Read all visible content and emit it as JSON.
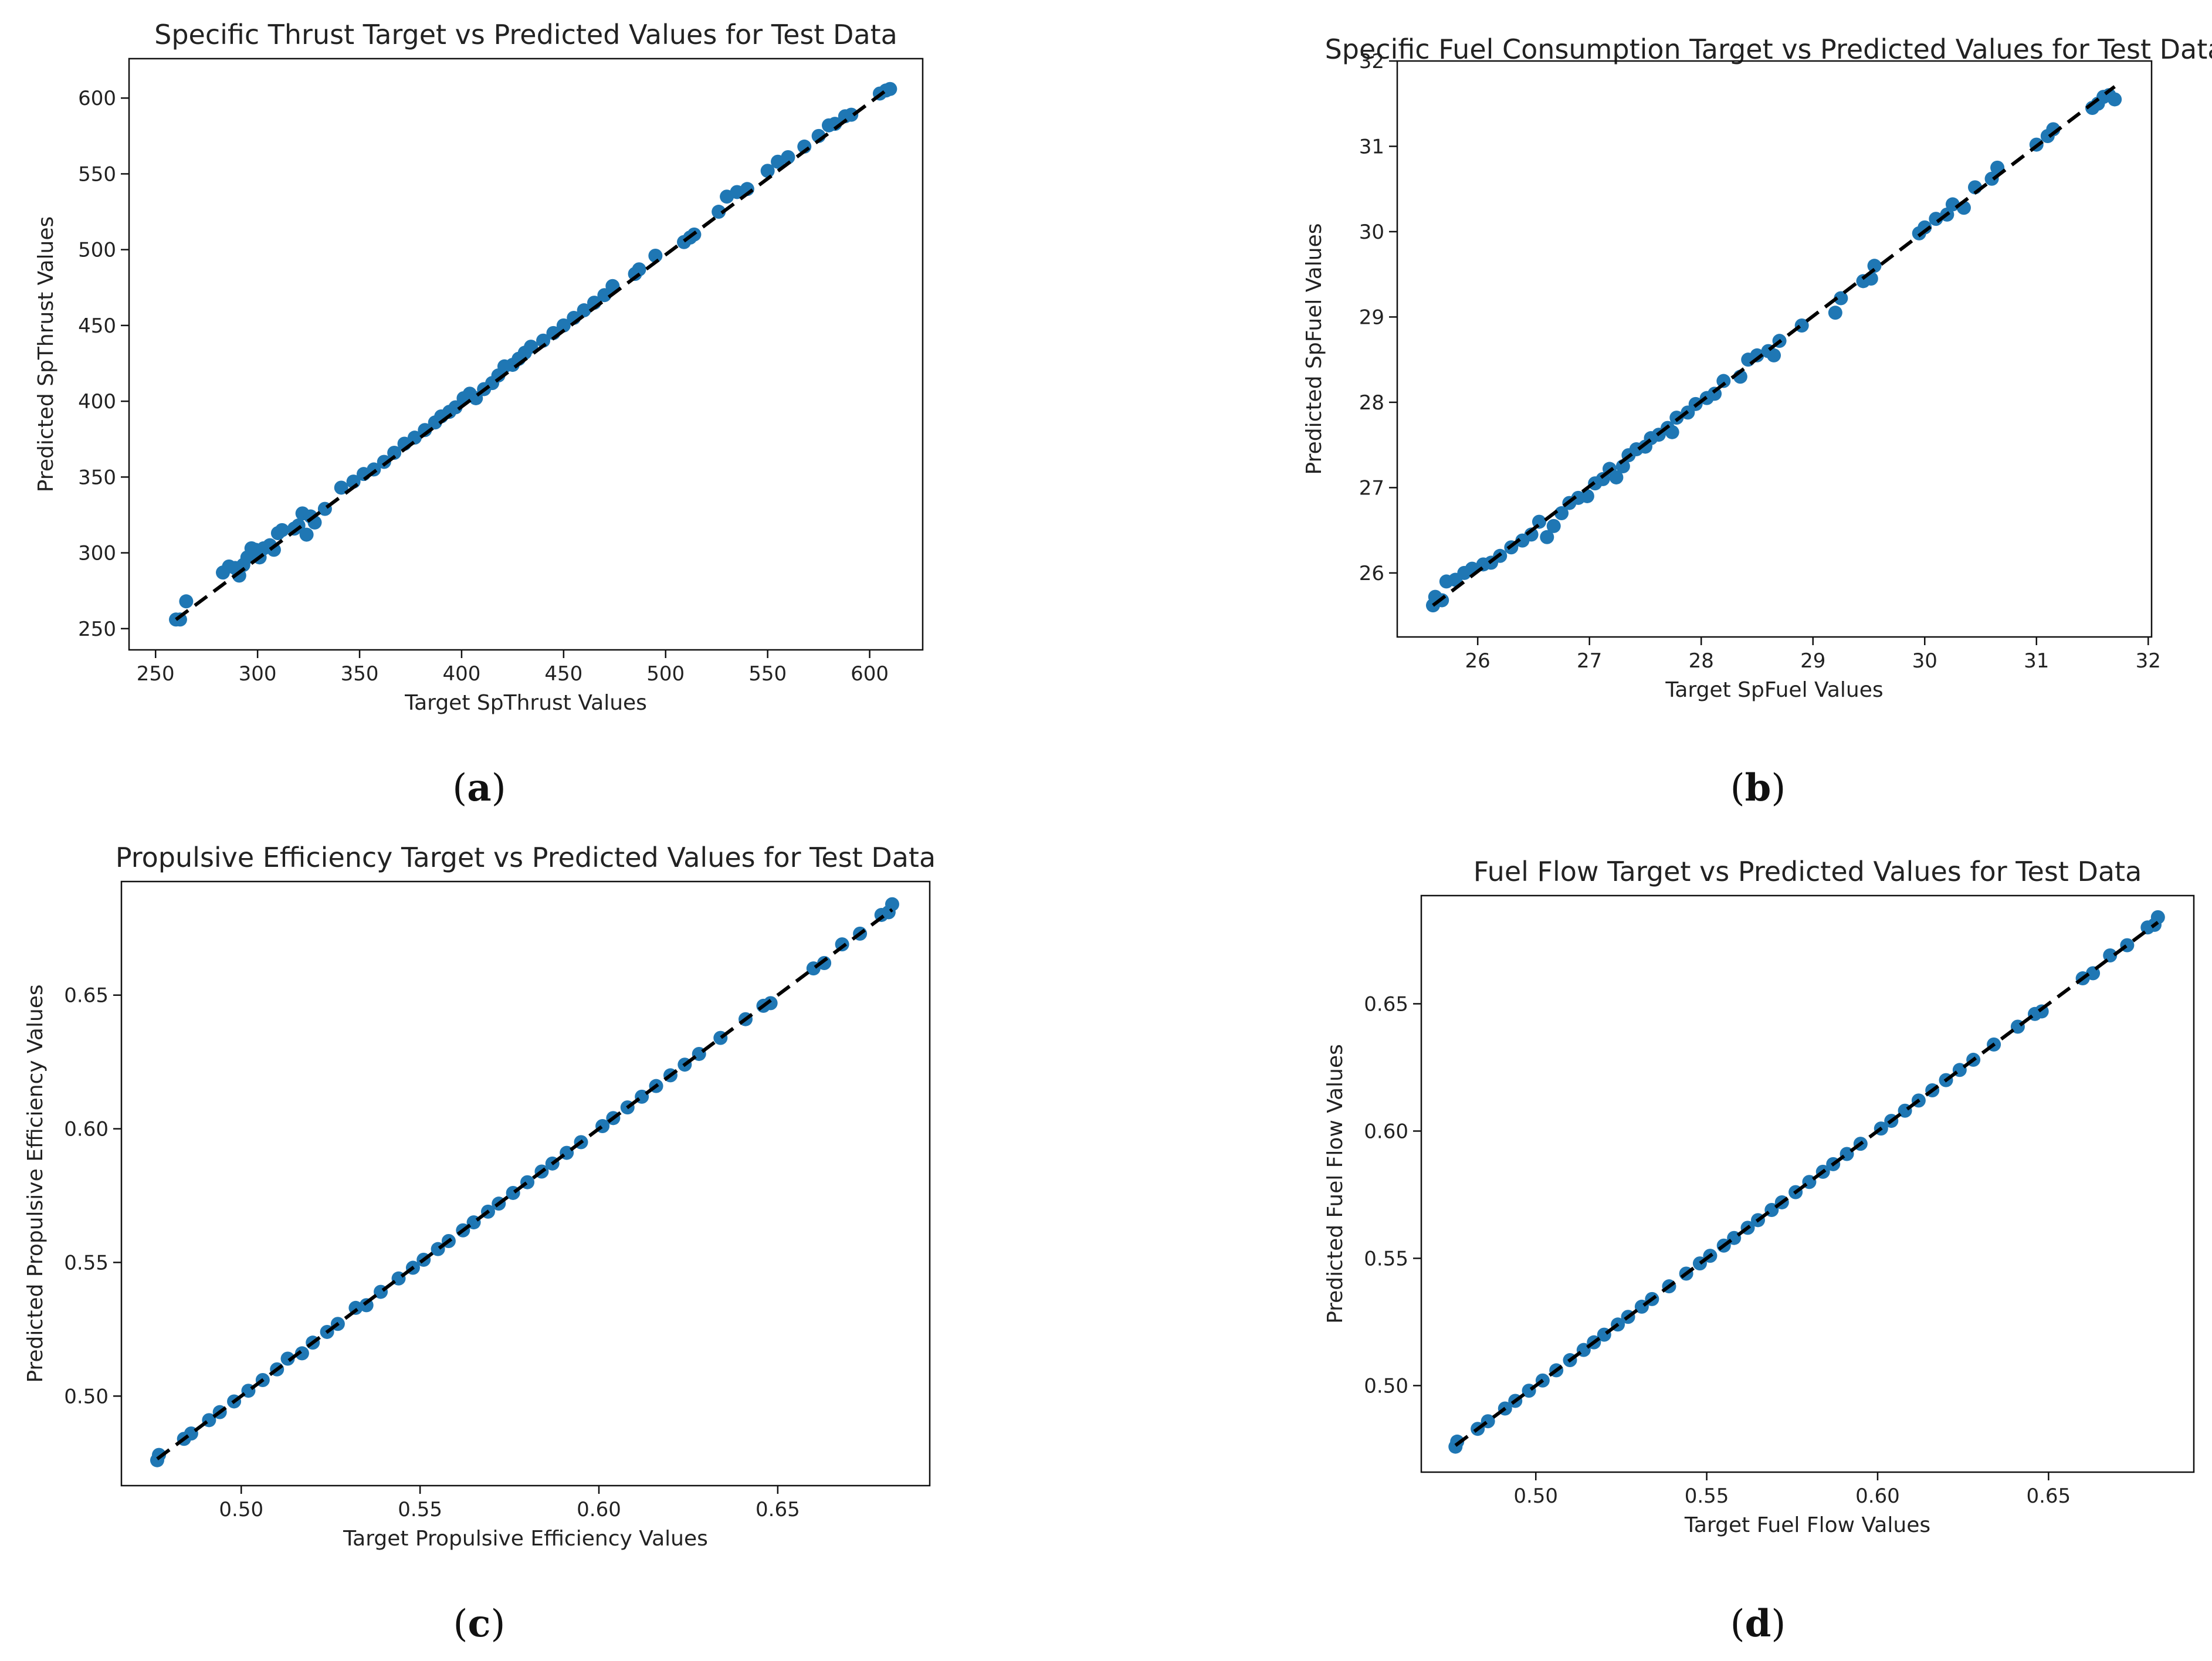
{
  "chart_data": [
    {
      "id": "a",
      "type": "scatter",
      "caption": "(a)",
      "caption_letter": "a",
      "title": "Specific Thrust Target vs Predicted Values for Test Data",
      "xlabel": "Target SpThrust Values",
      "ylabel": "Predicted SpThrust Values",
      "xlim": [
        237,
        626
      ],
      "ylim": [
        236,
        626
      ],
      "xticks": [
        250,
        300,
        350,
        400,
        450,
        500,
        550,
        600
      ],
      "yticks": [
        250,
        300,
        350,
        400,
        450,
        500,
        550,
        600
      ],
      "tick_decimals": 0,
      "reference_line": [
        [
          260,
          256
        ],
        [
          610,
          607
        ]
      ],
      "points": [
        [
          260,
          256
        ],
        [
          262,
          256
        ],
        [
          265,
          268
        ],
        [
          283,
          287
        ],
        [
          286,
          291
        ],
        [
          289,
          290
        ],
        [
          291,
          285
        ],
        [
          293,
          292
        ],
        [
          295,
          297
        ],
        [
          297,
          303
        ],
        [
          299,
          302
        ],
        [
          301,
          297
        ],
        [
          303,
          303
        ],
        [
          306,
          305
        ],
        [
          308,
          302
        ],
        [
          310,
          313
        ],
        [
          312,
          315
        ],
        [
          318,
          316
        ],
        [
          320,
          318
        ],
        [
          322,
          326
        ],
        [
          324,
          312
        ],
        [
          326,
          324
        ],
        [
          328,
          320
        ],
        [
          333,
          329
        ],
        [
          341,
          343
        ],
        [
          347,
          347
        ],
        [
          352,
          352
        ],
        [
          357,
          355
        ],
        [
          362,
          360
        ],
        [
          367,
          366
        ],
        [
          372,
          372
        ],
        [
          377,
          376
        ],
        [
          382,
          381
        ],
        [
          387,
          386
        ],
        [
          390,
          390
        ],
        [
          394,
          393
        ],
        [
          397,
          396
        ],
        [
          401,
          402
        ],
        [
          404,
          405
        ],
        [
          407,
          402
        ],
        [
          411,
          408
        ],
        [
          415,
          412
        ],
        [
          418,
          417
        ],
        [
          421,
          423
        ],
        [
          425,
          424
        ],
        [
          428,
          428
        ],
        [
          431,
          432
        ],
        [
          434,
          436
        ],
        [
          440,
          440
        ],
        [
          445,
          445
        ],
        [
          450,
          450
        ],
        [
          455,
          455
        ],
        [
          460,
          460
        ],
        [
          465,
          465
        ],
        [
          470,
          470
        ],
        [
          474,
          476
        ],
        [
          485,
          484
        ],
        [
          487,
          487
        ],
        [
          495,
          496
        ],
        [
          509,
          505
        ],
        [
          512,
          508
        ],
        [
          514,
          510
        ],
        [
          526,
          525
        ],
        [
          530,
          535
        ],
        [
          535,
          538
        ],
        [
          540,
          540
        ],
        [
          550,
          552
        ],
        [
          555,
          558
        ],
        [
          560,
          561
        ],
        [
          568,
          568
        ],
        [
          575,
          575
        ],
        [
          580,
          582
        ],
        [
          583,
          583
        ],
        [
          588,
          588
        ],
        [
          591,
          589
        ],
        [
          605,
          603
        ],
        [
          608,
          605
        ],
        [
          610,
          606
        ]
      ]
    },
    {
      "id": "b",
      "type": "scatter",
      "caption": "(b)",
      "caption_letter": "b",
      "title": "Specific Fuel Consumption Target vs Predicted Values for Test Data",
      "xlabel": "Target SpFuel Values",
      "ylabel": "Predicted SpFuel Values",
      "xlim": [
        25.28,
        32.03
      ],
      "ylim": [
        25.25,
        32.0
      ],
      "xticks": [
        26,
        27,
        28,
        29,
        30,
        31,
        32
      ],
      "yticks": [
        26,
        27,
        28,
        29,
        30,
        31,
        32
      ],
      "tick_decimals": 0,
      "reference_line": [
        [
          25.6,
          25.62
        ],
        [
          31.7,
          31.7
        ]
      ],
      "points": [
        [
          25.6,
          25.62
        ],
        [
          25.62,
          25.72
        ],
        [
          25.68,
          25.68
        ],
        [
          25.72,
          25.9
        ],
        [
          25.8,
          25.92
        ],
        [
          25.88,
          26.0
        ],
        [
          25.95,
          26.05
        ],
        [
          26.05,
          26.1
        ],
        [
          26.12,
          26.12
        ],
        [
          26.2,
          26.2
        ],
        [
          26.3,
          26.3
        ],
        [
          26.4,
          26.38
        ],
        [
          26.48,
          26.45
        ],
        [
          26.55,
          26.6
        ],
        [
          26.62,
          26.42
        ],
        [
          26.68,
          26.55
        ],
        [
          26.75,
          26.7
        ],
        [
          26.82,
          26.82
        ],
        [
          26.9,
          26.88
        ],
        [
          26.98,
          26.9
        ],
        [
          27.05,
          27.05
        ],
        [
          27.12,
          27.1
        ],
        [
          27.18,
          27.22
        ],
        [
          27.24,
          27.12
        ],
        [
          27.3,
          27.25
        ],
        [
          27.35,
          27.38
        ],
        [
          27.42,
          27.45
        ],
        [
          27.5,
          27.48
        ],
        [
          27.55,
          27.58
        ],
        [
          27.62,
          27.62
        ],
        [
          27.7,
          27.7
        ],
        [
          27.74,
          27.65
        ],
        [
          27.78,
          27.82
        ],
        [
          27.88,
          27.88
        ],
        [
          27.95,
          27.98
        ],
        [
          28.05,
          28.05
        ],
        [
          28.12,
          28.1
        ],
        [
          28.2,
          28.25
        ],
        [
          28.35,
          28.3
        ],
        [
          28.42,
          28.5
        ],
        [
          28.5,
          28.55
        ],
        [
          28.6,
          28.6
        ],
        [
          28.65,
          28.55
        ],
        [
          28.7,
          28.72
        ],
        [
          28.9,
          28.9
        ],
        [
          29.2,
          29.05
        ],
        [
          29.25,
          29.22
        ],
        [
          29.45,
          29.42
        ],
        [
          29.52,
          29.45
        ],
        [
          29.55,
          29.6
        ],
        [
          29.95,
          29.98
        ],
        [
          30.0,
          30.05
        ],
        [
          30.1,
          30.15
        ],
        [
          30.2,
          30.2
        ],
        [
          30.25,
          30.32
        ],
        [
          30.35,
          30.28
        ],
        [
          30.45,
          30.52
        ],
        [
          30.6,
          30.62
        ],
        [
          30.65,
          30.75
        ],
        [
          31.0,
          31.02
        ],
        [
          31.1,
          31.12
        ],
        [
          31.15,
          31.2
        ],
        [
          31.5,
          31.45
        ],
        [
          31.55,
          31.5
        ],
        [
          31.6,
          31.58
        ],
        [
          31.65,
          31.6
        ],
        [
          31.7,
          31.55
        ]
      ]
    },
    {
      "id": "c",
      "type": "scatter",
      "caption": "(c)",
      "caption_letter": "c",
      "title": "Propulsive Efficiency Target vs Predicted Values for Test Data",
      "xlabel": "Target Propulsive Efficiency Values",
      "ylabel": "Predicted Propulsive Efficiency Values",
      "xlim": [
        0.4665,
        0.6925
      ],
      "ylim": [
        0.4665,
        0.6925
      ],
      "xticks": [
        0.5,
        0.55,
        0.6,
        0.65
      ],
      "yticks": [
        0.5,
        0.55,
        0.6,
        0.65
      ],
      "tick_decimals": 2,
      "reference_line": [
        [
          0.4765,
          0.4765
        ],
        [
          0.682,
          0.682
        ]
      ],
      "points": [
        [
          0.4765,
          0.476
        ],
        [
          0.477,
          0.478
        ],
        [
          0.484,
          0.484
        ],
        [
          0.486,
          0.486
        ],
        [
          0.491,
          0.491
        ],
        [
          0.494,
          0.494
        ],
        [
          0.498,
          0.498
        ],
        [
          0.502,
          0.502
        ],
        [
          0.506,
          0.506
        ],
        [
          0.51,
          0.51
        ],
        [
          0.513,
          0.514
        ],
        [
          0.517,
          0.516
        ],
        [
          0.52,
          0.52
        ],
        [
          0.524,
          0.524
        ],
        [
          0.527,
          0.527
        ],
        [
          0.532,
          0.533
        ],
        [
          0.535,
          0.534
        ],
        [
          0.539,
          0.539
        ],
        [
          0.544,
          0.544
        ],
        [
          0.548,
          0.548
        ],
        [
          0.551,
          0.551
        ],
        [
          0.555,
          0.555
        ],
        [
          0.558,
          0.558
        ],
        [
          0.562,
          0.562
        ],
        [
          0.565,
          0.565
        ],
        [
          0.569,
          0.569
        ],
        [
          0.572,
          0.572
        ],
        [
          0.576,
          0.576
        ],
        [
          0.58,
          0.58
        ],
        [
          0.584,
          0.584
        ],
        [
          0.587,
          0.587
        ],
        [
          0.591,
          0.591
        ],
        [
          0.595,
          0.595
        ],
        [
          0.601,
          0.601
        ],
        [
          0.604,
          0.604
        ],
        [
          0.608,
          0.608
        ],
        [
          0.612,
          0.612
        ],
        [
          0.616,
          0.616
        ],
        [
          0.62,
          0.62
        ],
        [
          0.624,
          0.624
        ],
        [
          0.628,
          0.628
        ],
        [
          0.634,
          0.634
        ],
        [
          0.641,
          0.641
        ],
        [
          0.646,
          0.646
        ],
        [
          0.648,
          0.647
        ],
        [
          0.66,
          0.66
        ],
        [
          0.663,
          0.662
        ],
        [
          0.668,
          0.669
        ],
        [
          0.673,
          0.673
        ],
        [
          0.679,
          0.68
        ],
        [
          0.681,
          0.681
        ],
        [
          0.682,
          0.684
        ]
      ]
    },
    {
      "id": "d",
      "type": "scatter",
      "caption": "(d)",
      "caption_letter": "d",
      "title": "Fuel Flow Target vs Predicted Values for Test Data",
      "xlabel": "Target Fuel Flow Values",
      "ylabel": "Predicted Fuel Flow Values",
      "xlim": [
        0.4665,
        0.6925
      ],
      "ylim": [
        0.466,
        0.6925
      ],
      "xticks": [
        0.5,
        0.55,
        0.6,
        0.65
      ],
      "yticks": [
        0.5,
        0.55,
        0.6,
        0.65
      ],
      "tick_decimals": 2,
      "reference_line": [
        [
          0.4765,
          0.4765
        ],
        [
          0.682,
          0.682
        ]
      ],
      "points": [
        [
          0.4765,
          0.476
        ],
        [
          0.477,
          0.478
        ],
        [
          0.483,
          0.483
        ],
        [
          0.486,
          0.486
        ],
        [
          0.491,
          0.491
        ],
        [
          0.494,
          0.494
        ],
        [
          0.498,
          0.498
        ],
        [
          0.502,
          0.502
        ],
        [
          0.506,
          0.506
        ],
        [
          0.51,
          0.51
        ],
        [
          0.514,
          0.514
        ],
        [
          0.517,
          0.517
        ],
        [
          0.52,
          0.52
        ],
        [
          0.524,
          0.524
        ],
        [
          0.527,
          0.527
        ],
        [
          0.531,
          0.531
        ],
        [
          0.534,
          0.534
        ],
        [
          0.539,
          0.539
        ],
        [
          0.544,
          0.544
        ],
        [
          0.548,
          0.548
        ],
        [
          0.551,
          0.551
        ],
        [
          0.555,
          0.555
        ],
        [
          0.558,
          0.558
        ],
        [
          0.562,
          0.562
        ],
        [
          0.565,
          0.565
        ],
        [
          0.569,
          0.569
        ],
        [
          0.572,
          0.572
        ],
        [
          0.576,
          0.576
        ],
        [
          0.58,
          0.58
        ],
        [
          0.584,
          0.584
        ],
        [
          0.587,
          0.587
        ],
        [
          0.591,
          0.591
        ],
        [
          0.595,
          0.595
        ],
        [
          0.601,
          0.601
        ],
        [
          0.604,
          0.604
        ],
        [
          0.608,
          0.608
        ],
        [
          0.612,
          0.612
        ],
        [
          0.616,
          0.616
        ],
        [
          0.62,
          0.62
        ],
        [
          0.624,
          0.624
        ],
        [
          0.628,
          0.628
        ],
        [
          0.634,
          0.634
        ],
        [
          0.641,
          0.641
        ],
        [
          0.646,
          0.646
        ],
        [
          0.648,
          0.647
        ],
        [
          0.66,
          0.66
        ],
        [
          0.663,
          0.662
        ],
        [
          0.668,
          0.669
        ],
        [
          0.673,
          0.673
        ],
        [
          0.679,
          0.68
        ],
        [
          0.681,
          0.681
        ],
        [
          0.682,
          0.684
        ]
      ]
    }
  ]
}
